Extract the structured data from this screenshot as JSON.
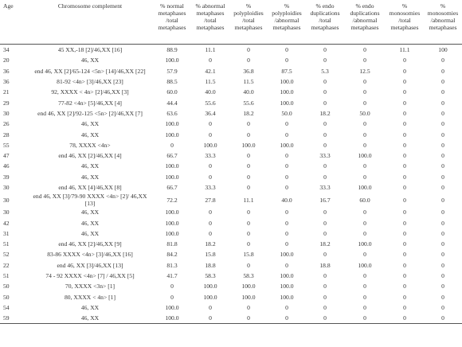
{
  "table": {
    "header": [
      "Age",
      "Chromosome complement",
      "% normal metaphases /total metaphases",
      "% abnormal metaphases /total metaphases",
      "% polyploidies /total metaphases",
      "% polyploidies /abnormal metaphases",
      "% endo duplications /total metaphases",
      "% endo duplications /abnormal metaphases",
      "% monosomies /total metaphases",
      "% monosomies /abnormal metaphases"
    ],
    "rows": [
      [
        "34",
        "45 XX,-18 [2]/46,XX [16]",
        "88.9",
        "11.1",
        "0",
        "0",
        "0",
        "0",
        "11.1",
        "100"
      ],
      [
        "20",
        "46, XX",
        "100.0",
        "0",
        "0",
        "0",
        "0",
        "0",
        "0",
        "0"
      ],
      [
        "36",
        "end 46, XX [2]/65-124 <5n> [14]/46,XX [22]",
        "57.9",
        "42.1",
        "36.8",
        "87.5",
        "5.3",
        "12.5",
        "0",
        "0"
      ],
      [
        "36",
        "81-92 <4n> [3]/46,XX [23]",
        "88.5",
        "11.5",
        "11.5",
        "100.0",
        "0",
        "0",
        "0",
        "0"
      ],
      [
        "21",
        "92, XXXX < 4n> [2]/46,XX [3]",
        "60.0",
        "40.0",
        "40.0",
        "100.0",
        "0",
        "0",
        "0",
        "0"
      ],
      [
        "29",
        "77-82 <4n> [5]/46,XX [4]",
        "44.4",
        "55.6",
        "55.6",
        "100.0",
        "0",
        "0",
        "0",
        "0"
      ],
      [
        "30",
        "end 46, XX [2]/92-125 <5n> [2]/46,XX [7]",
        "63.6",
        "36.4",
        "18.2",
        "50.0",
        "18.2",
        "50.0",
        "0",
        "0"
      ],
      [
        "26",
        "46, XX",
        "100.0",
        "0",
        "0",
        "0",
        "0",
        "0",
        "0",
        "0"
      ],
      [
        "28",
        "46, XX",
        "100.0",
        "0",
        "0",
        "0",
        "0",
        "0",
        "0",
        "0"
      ],
      [
        "55",
        "78, XXXX <4n>",
        "0",
        "100.0",
        "100.0",
        "100.0",
        "0",
        "0",
        "0",
        "0"
      ],
      [
        "47",
        "end 46, XX [2]/46,XX [4]",
        "66.7",
        "33.3",
        "0",
        "0",
        "33.3",
        "100.0",
        "0",
        "0"
      ],
      [
        "46",
        "46, XX",
        "100.0",
        "0",
        "0",
        "0",
        "0",
        "0",
        "0",
        "0"
      ],
      [
        "39",
        "46, XX",
        "100.0",
        "0",
        "0",
        "0",
        "0",
        "0",
        "0",
        "0"
      ],
      [
        "30",
        "end 46, XX [4]/46,XX [8]",
        "66.7",
        "33.3",
        "0",
        "0",
        "33.3",
        "100.0",
        "0",
        "0"
      ],
      [
        "30",
        "end 46, XX [3]/79-90 XXXX <4n> [2]/ 46,XX [13]",
        "72.2",
        "27.8",
        "11.1",
        "40.0",
        "16.7",
        "60.0",
        "0",
        "0"
      ],
      [
        "30",
        "46, XX",
        "100.0",
        "0",
        "0",
        "0",
        "0",
        "0",
        "0",
        "0"
      ],
      [
        "42",
        "46, XX",
        "100.0",
        "0",
        "0",
        "0",
        "0",
        "0",
        "0",
        "0"
      ],
      [
        "31",
        "46, XX",
        "100.0",
        "0",
        "0",
        "0",
        "0",
        "0",
        "0",
        "0"
      ],
      [
        "51",
        "end 46, XX [2]/46,XX [9]",
        "81.8",
        "18.2",
        "0",
        "0",
        "18.2",
        "100.0",
        "0",
        "0"
      ],
      [
        "52",
        "83-86 XXXX <4n> [3]/46,XX [16]",
        "84.2",
        "15.8",
        "15.8",
        "100.0",
        "0",
        "0",
        "0",
        "0"
      ],
      [
        "22",
        "end 46, XX [3]/46,XX [13]",
        "81.3",
        "18.8",
        "0",
        "0",
        "18.8",
        "100.0",
        "0",
        "0"
      ],
      [
        "51",
        "74 - 92 XXXX <4n> [7] / 46,XX [5]",
        "41.7",
        "58.3",
        "58.3",
        "100.0",
        "0",
        "0",
        "0",
        "0"
      ],
      [
        "50",
        "70, XXXX <3n> [1]",
        "0",
        "100.0",
        "100.0",
        "100.0",
        "0",
        "0",
        "0",
        "0"
      ],
      [
        "50",
        "80, XXXX < 4n> [1]",
        "0",
        "100.0",
        "100.0",
        "100.0",
        "0",
        "0",
        "0",
        "0"
      ],
      [
        "54",
        "46, XX",
        "100.0",
        "0",
        "0",
        "0",
        "0",
        "0",
        "0",
        "0"
      ],
      [
        "59",
        "46, XX",
        "100.0",
        "0",
        "0",
        "0",
        "0",
        "0",
        "0",
        "0"
      ]
    ]
  }
}
